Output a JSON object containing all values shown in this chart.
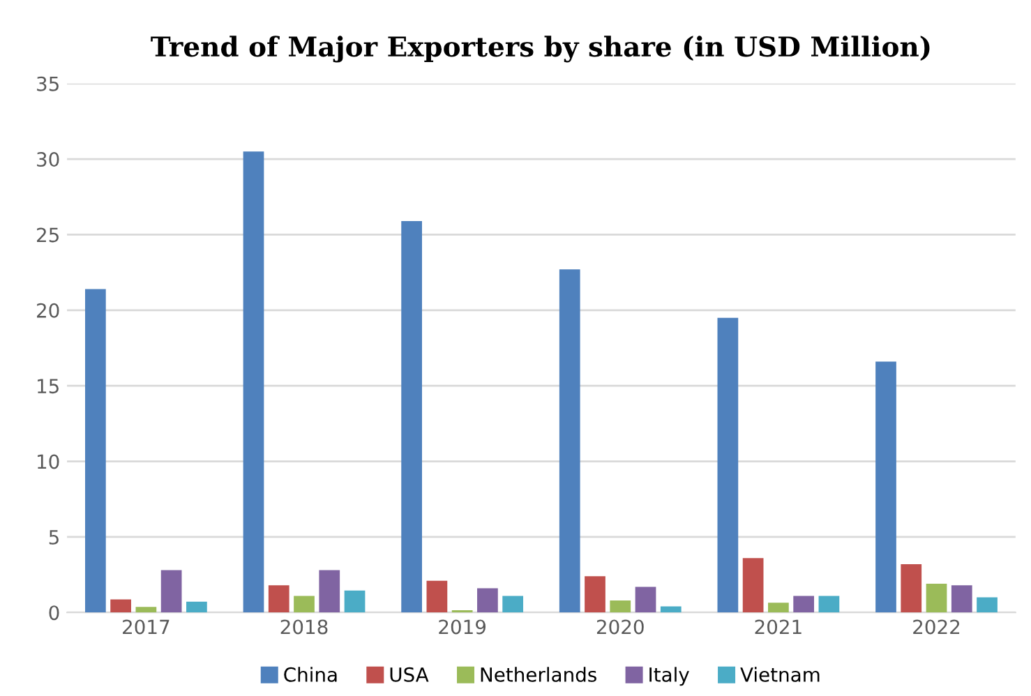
{
  "chart_data": {
    "type": "bar",
    "title": "Trend of Major Exporters by share (in USD Million)",
    "categories": [
      "2017",
      "2018",
      "2019",
      "2020",
      "2021",
      "2022"
    ],
    "series": [
      {
        "name": "China",
        "color": "#4f81bd",
        "values": [
          21.4,
          30.5,
          25.9,
          22.7,
          19.5,
          16.6
        ]
      },
      {
        "name": "USA",
        "color": "#c0504d",
        "values": [
          0.86,
          1.8,
          2.1,
          2.4,
          3.6,
          3.2
        ]
      },
      {
        "name": "Netherlands",
        "color": "#9bbb59",
        "values": [
          0.37,
          1.1,
          0.15,
          0.8,
          0.65,
          1.9
        ]
      },
      {
        "name": "Italy",
        "color": "#8064a2",
        "values": [
          2.8,
          2.8,
          1.6,
          1.7,
          1.1,
          1.8
        ]
      },
      {
        "name": "Vietnam",
        "color": "#4bacc6",
        "values": [
          0.71,
          1.45,
          1.1,
          0.4,
          1.1,
          1.0
        ]
      }
    ],
    "ylim": [
      0,
      35
    ],
    "yticks": [
      0,
      5,
      10,
      15,
      20,
      25,
      30,
      35
    ],
    "grid": "y",
    "legend": "bottom"
  }
}
